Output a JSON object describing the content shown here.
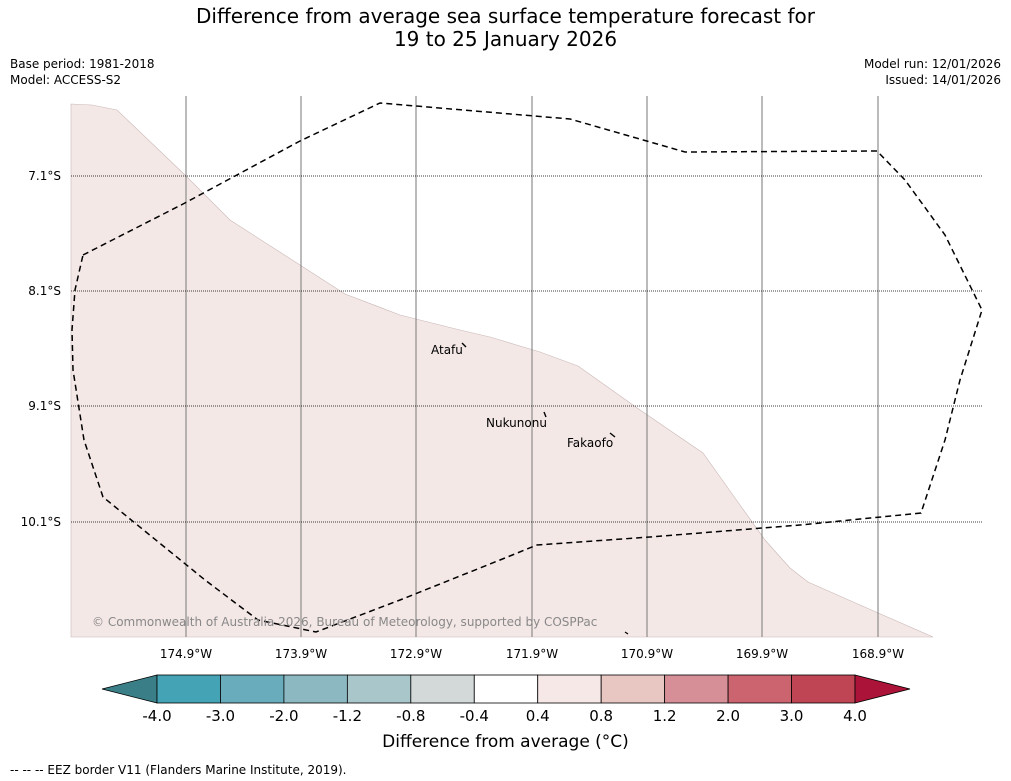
{
  "header": {
    "title_line1": "Difference from average sea surface temperature forecast for",
    "title_line2": "19 to 25 January 2026",
    "base_period": "Base period: 1981-2018",
    "model": "Model: ACCESS-S2",
    "model_run": "Model run: 12/01/2026",
    "issued": "Issued: 14/01/2026"
  },
  "map": {
    "lat_labels": [
      "7.1°S",
      "8.1°S",
      "9.1°S",
      "10.1°S"
    ],
    "lon_labels": [
      "174.9°W",
      "173.9°W",
      "172.9°W",
      "171.9°W",
      "170.9°W",
      "169.9°W",
      "168.9°W"
    ],
    "places": [
      {
        "name": "Atafu",
        "lat": -8.55,
        "lon": -172.5
      },
      {
        "name": "Nukunonu",
        "lat": -9.17,
        "lon": -171.8
      },
      {
        "name": "Fakaofo",
        "lat": -9.35,
        "lon": -171.2
      }
    ],
    "copyright": "© Commonwealth of Australia 2026, Bureau of Meteorology, supported by COSPPac",
    "anomaly_fill_color": "#f4e8e7",
    "ocean_color": "#ffffff"
  },
  "colorbar": {
    "tick_labels": [
      "-4.0",
      "-3.0",
      "-2.0",
      "-1.2",
      "-0.8",
      "-0.4",
      "0.4",
      "0.8",
      "1.2",
      "2.0",
      "3.0",
      "4.0"
    ],
    "colors": [
      "#44a3b4",
      "#69acbb",
      "#8cb8c2",
      "#a9c6cb",
      "#d2d9d8",
      "#ffffff",
      "#f6e8e6",
      "#e8c6c2",
      "#d78f97",
      "#cc6470",
      "#bf4555"
    ],
    "under_color": "#3a7f88",
    "over_color": "#ab1438",
    "label": "Difference from average (°C)"
  },
  "footnote": "-- -- -- EEZ border V11 (Flanders Marine Institute, 2019)."
}
